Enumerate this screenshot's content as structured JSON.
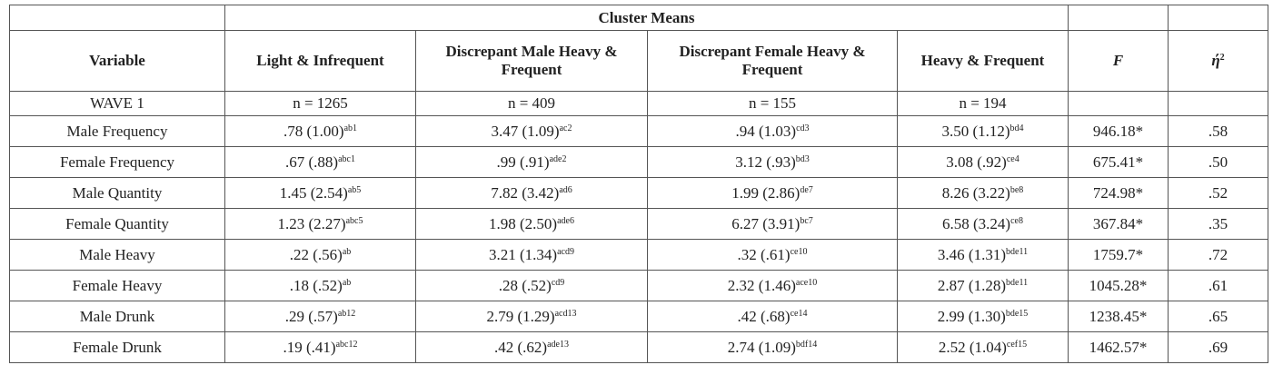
{
  "table": {
    "group_header": "Cluster Means",
    "columns": [
      {
        "text": "Variable"
      },
      {
        "text": "Light & Infrequent"
      },
      {
        "text": "Discrepant Male Heavy & Frequent"
      },
      {
        "text": "Discrepant Female Heavy & Frequent"
      },
      {
        "text": "Heavy & Frequent"
      },
      {
        "text": "F"
      },
      {
        "text": "ή",
        "sup": "2"
      }
    ],
    "wave_row": [
      "WAVE 1",
      "n = 1265",
      "n = 409",
      "n = 155",
      "n = 194"
    ],
    "rows": [
      {
        "label": "Male Frequency",
        "cells": [
          {
            "text": ".78 (1.00)",
            "sup": "ab1"
          },
          {
            "text": "3.47 (1.09)",
            "sup": "ac2"
          },
          {
            "text": ".94 (1.03)",
            "sup": "cd3"
          },
          {
            "text": "3.50 (1.12)",
            "sup": "bd4"
          }
        ],
        "F": "946.18*",
        "eta": ".58"
      },
      {
        "label": "Female Frequency",
        "cells": [
          {
            "text": ".67 (.88)",
            "sup": "abc1"
          },
          {
            "text": ".99 (.91)",
            "sup": "ade2"
          },
          {
            "text": "3.12 (.93)",
            "sup": "bd3"
          },
          {
            "text": "3.08 (.92)",
            "sup": "ce4"
          }
        ],
        "F": "675.41*",
        "eta": ".50"
      },
      {
        "label": "Male Quantity",
        "cells": [
          {
            "text": "1.45 (2.54)",
            "sup": "ab5"
          },
          {
            "text": "7.82 (3.42)",
            "sup": "ad6"
          },
          {
            "text": "1.99 (2.86)",
            "sup": "de7"
          },
          {
            "text": "8.26 (3.22)",
            "sup": "be8"
          }
        ],
        "F": "724.98*",
        "eta": ".52"
      },
      {
        "label": "Female Quantity",
        "cells": [
          {
            "text": "1.23 (2.27)",
            "sup": "abc5"
          },
          {
            "text": "1.98 (2.50)",
            "sup": "ade6"
          },
          {
            "text": "6.27 (3.91)",
            "sup": "bc7"
          },
          {
            "text": "6.58 (3.24)",
            "sup": "ce8"
          }
        ],
        "F": "367.84*",
        "eta": ".35"
      },
      {
        "label": "Male Heavy",
        "cells": [
          {
            "text": ".22 (.56)",
            "sup": "ab"
          },
          {
            "text": "3.21 (1.34)",
            "sup": "acd9"
          },
          {
            "text": ".32 (.61)",
            "sup": "ce10"
          },
          {
            "text": "3.46 (1.31)",
            "sup": "bde11"
          }
        ],
        "F": "1759.7*",
        "eta": ".72"
      },
      {
        "label": "Female Heavy",
        "cells": [
          {
            "text": ".18 (.52)",
            "sup": "ab"
          },
          {
            "text": ".28 (.52)",
            "sup": "cd9"
          },
          {
            "text": "2.32 (1.46)",
            "sup": "ace10"
          },
          {
            "text": "2.87 (1.28)",
            "sup": "bde11"
          }
        ],
        "F": "1045.28*",
        "eta": ".61"
      },
      {
        "label": "Male Drunk",
        "cells": [
          {
            "text": ".29 (.57)",
            "sup": "ab12"
          },
          {
            "text": "2.79 (1.29)",
            "sup": "acd13"
          },
          {
            "text": ".42 (.68)",
            "sup": "ce14"
          },
          {
            "text": "2.99 (1.30)",
            "sup": "bde15"
          }
        ],
        "F": "1238.45*",
        "eta": ".65"
      },
      {
        "label": "Female Drunk",
        "cells": [
          {
            "text": ".19 (.41)",
            "sup": "abc12"
          },
          {
            "text": ".42 (.62)",
            "sup": "ade13"
          },
          {
            "text": "2.74 (1.09)",
            "sup": "bdf14"
          },
          {
            "text": "2.52 (1.04)",
            "sup": "cef15"
          }
        ],
        "F": "1462.57*",
        "eta": ".69"
      }
    ]
  }
}
